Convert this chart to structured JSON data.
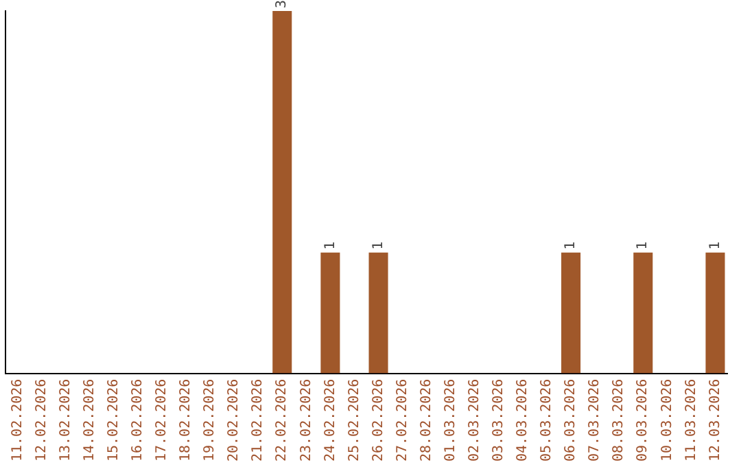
{
  "chart_data": {
    "type": "bar",
    "categories": [
      "11.02.2026",
      "12.02.2026",
      "13.02.2026",
      "14.02.2026",
      "15.02.2026",
      "16.02.2026",
      "17.02.2026",
      "18.02.2026",
      "19.02.2026",
      "20.02.2026",
      "21.02.2026",
      "22.02.2026",
      "23.02.2026",
      "24.02.2026",
      "25.02.2026",
      "26.02.2026",
      "27.02.2026",
      "28.02.2026",
      "01.03.2026",
      "02.03.2026",
      "03.03.2026",
      "04.03.2026",
      "05.03.2026",
      "06.03.2026",
      "07.03.2026",
      "08.03.2026",
      "09.03.2026",
      "10.03.2026",
      "11.03.2026",
      "12.03.2026"
    ],
    "values": [
      0,
      0,
      0,
      0,
      0,
      0,
      0,
      0,
      0,
      0,
      0,
      3,
      0,
      1,
      0,
      1,
      0,
      0,
      0,
      0,
      0,
      0,
      0,
      1,
      0,
      0,
      1,
      0,
      0,
      1
    ],
    "value_labels": [
      null,
      null,
      null,
      null,
      null,
      null,
      null,
      null,
      null,
      null,
      null,
      "3",
      null,
      "1",
      null,
      "1",
      null,
      null,
      null,
      null,
      null,
      null,
      null,
      "1",
      null,
      null,
      "1",
      null,
      null,
      "1"
    ],
    "color": "#a0582a",
    "grid": false,
    "legend": false
  }
}
